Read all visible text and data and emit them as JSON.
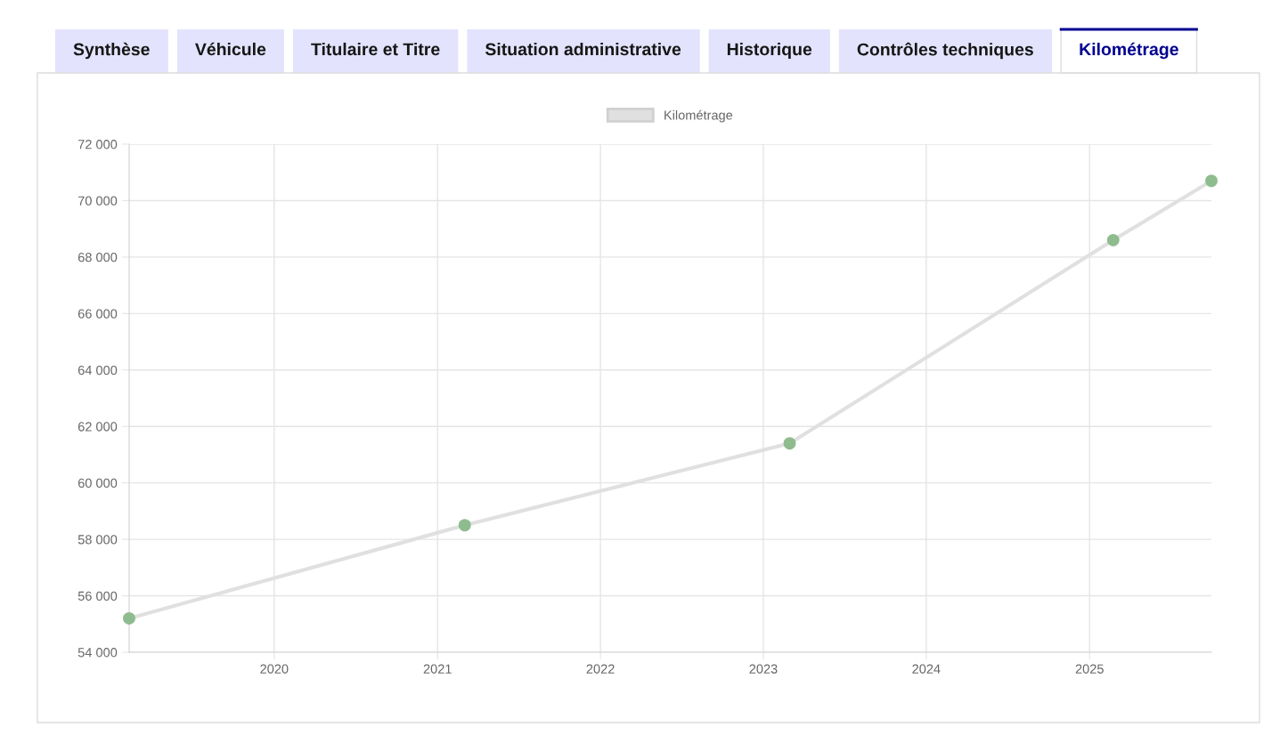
{
  "chart_data": {
    "type": "line",
    "annotations": [
      "Synthèse",
      "Véhicule",
      "Titulaire et Titre",
      "Situation administrative",
      "Historique",
      "Contrôles techniques",
      "Kilométrage"
    ],
    "x": [
      "2019-02-10",
      "2021-03-03",
      "2023-03-01",
      "2025-02-23",
      "2025-10-01"
    ],
    "series": [
      {
        "name": "Kilométrage",
        "color": "#e0e0e0",
        "colors": [
          "#8fbc8f",
          "#8fbc8f",
          "#8fbc8f",
          "#8fbc8f",
          "#8fbc8f"
        ],
        "values": [
          55200,
          58500,
          61400,
          68600,
          70700
        ]
      }
    ],
    "xlim": [
      "2019-02-10",
      "2025-10-01"
    ],
    "xticks": [
      {
        "value": "2020-01-01",
        "label": "2020"
      },
      {
        "value": "2021-01-01",
        "label": "2021"
      },
      {
        "value": "2022-01-01",
        "label": "2022"
      },
      {
        "value": "2023-01-01",
        "label": "2023"
      },
      {
        "value": "2024-01-01",
        "label": "2024"
      },
      {
        "value": "2025-01-01",
        "label": "2025"
      }
    ],
    "ylim": [
      54000,
      72000
    ],
    "yticks": [
      {
        "value": 54000,
        "label": "54 000"
      },
      {
        "value": 56000,
        "label": "56 000"
      },
      {
        "value": 58000,
        "label": "58 000"
      },
      {
        "value": 60000,
        "label": "60 000"
      },
      {
        "value": 62000,
        "label": "62 000"
      },
      {
        "value": 64000,
        "label": "64 000"
      },
      {
        "value": 66000,
        "label": "66 000"
      },
      {
        "value": 68000,
        "label": "68 000"
      },
      {
        "value": 70000,
        "label": "70 000"
      },
      {
        "value": 72000,
        "label": "72 000"
      }
    ],
    "grid": true,
    "legend": "top",
    "marker": "circle",
    "line_style": "solid"
  }
}
